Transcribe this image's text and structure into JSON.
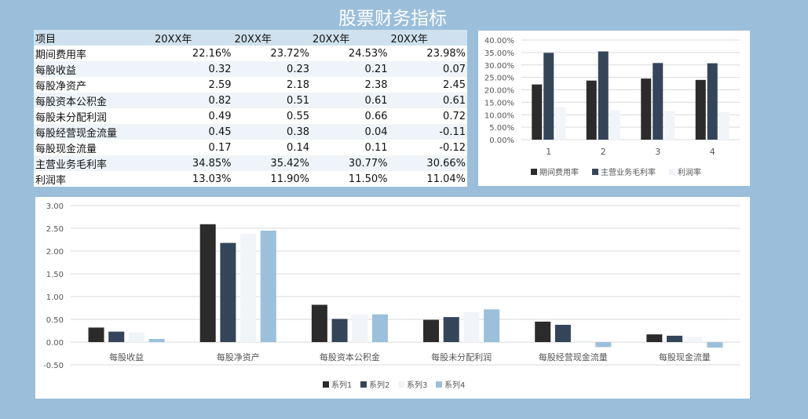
{
  "title": "股票财务指标",
  "table": {
    "headers": [
      "项目",
      "20XX年",
      "20XX年",
      "20XX年",
      "20XX年"
    ],
    "rows": [
      [
        "期间费用率",
        "22.16%",
        "23.72%",
        "24.53%",
        "23.98%"
      ],
      [
        "每股收益",
        "0.32",
        "0.23",
        "0.21",
        "0.07"
      ],
      [
        "每股净资产",
        "2.59",
        "2.18",
        "2.38",
        "2.45"
      ],
      [
        "每股资本公积金",
        "0.82",
        "0.51",
        "0.61",
        "0.61"
      ],
      [
        "每股未分配利润",
        "0.49",
        "0.55",
        "0.66",
        "0.72"
      ],
      [
        "每股经营现金流量",
        "0.45",
        "0.38",
        "0.04",
        "-0.11"
      ],
      [
        "每股现金流量",
        "0.17",
        "0.14",
        "0.11",
        "-0.12"
      ],
      [
        "主营业务毛利率",
        "34.85%",
        "35.42%",
        "30.77%",
        "30.66%"
      ],
      [
        "利润率",
        "13.03%",
        "11.90%",
        "11.50%",
        "11.04%"
      ]
    ]
  },
  "chart_data": [
    {
      "type": "bar",
      "categories": [
        "1",
        "2",
        "3",
        "4"
      ],
      "series": [
        {
          "name": "期间费用率",
          "values": [
            22.16,
            23.72,
            24.53,
            23.98
          ],
          "color": "#2b2b2b"
        },
        {
          "name": "主营业务毛利率",
          "values": [
            34.85,
            35.42,
            30.77,
            30.66
          ],
          "color": "#344559"
        },
        {
          "name": "利润率",
          "values": [
            13.03,
            11.9,
            11.5,
            11.04
          ],
          "color": "#f1f4f8"
        }
      ],
      "yticks": [
        "0.00%",
        "5.00%",
        "10.00%",
        "15.00%",
        "20.00%",
        "25.00%",
        "30.00%",
        "35.00%",
        "40.00%"
      ],
      "ylim": [
        0,
        40
      ],
      "legend": "bottom",
      "grid": true
    },
    {
      "type": "bar",
      "categories": [
        "每股收益",
        "每股净资产",
        "每股资本公积金",
        "每股未分配利润",
        "每股经营现金流量",
        "每股现金流量"
      ],
      "series": [
        {
          "name": "系列1",
          "values": [
            0.32,
            2.59,
            0.82,
            0.49,
            0.45,
            0.17
          ],
          "color": "#2b2b2b"
        },
        {
          "name": "系列2",
          "values": [
            0.23,
            2.18,
            0.51,
            0.55,
            0.38,
            0.14
          ],
          "color": "#344559"
        },
        {
          "name": "系列3",
          "values": [
            0.21,
            2.38,
            0.61,
            0.66,
            0.04,
            0.11
          ],
          "color": "#f1f4f8"
        },
        {
          "name": "系列4",
          "values": [
            0.07,
            2.45,
            0.61,
            0.72,
            -0.11,
            -0.12
          ],
          "color": "#9bc0db"
        }
      ],
      "yticks": [
        "-0.50",
        "0.00",
        "0.50",
        "1.00",
        "1.50",
        "2.00",
        "2.50",
        "3.00"
      ],
      "ylim": [
        -0.5,
        3.0
      ],
      "legend": "bottom",
      "grid": true
    }
  ]
}
